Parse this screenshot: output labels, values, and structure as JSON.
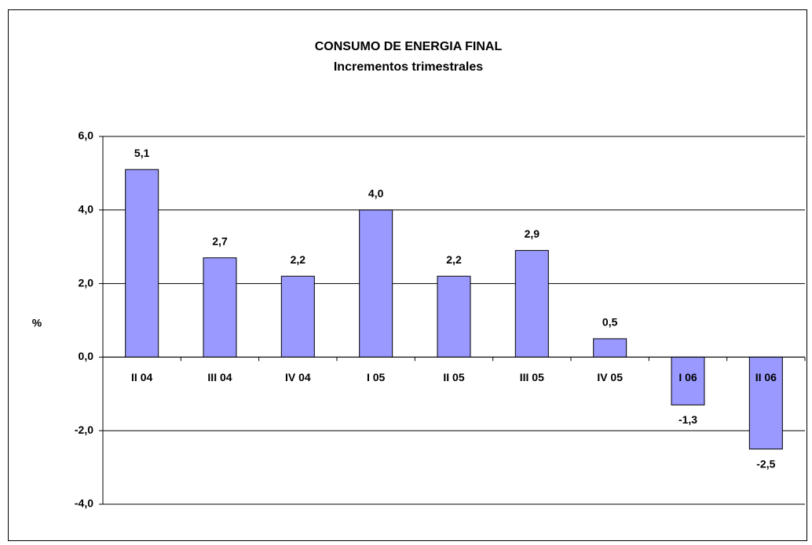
{
  "chart_data": {
    "type": "bar",
    "title": "CONSUMO DE ENERGIA FINAL",
    "subtitle": "Incrementos trimestrales",
    "y_label": "%",
    "categories": [
      "II 04",
      "III 04",
      "IV 04",
      "I 05",
      "II 05",
      "III 05",
      "IV 05",
      "I 06",
      "II 06"
    ],
    "values": [
      5.1,
      2.7,
      2.2,
      4.0,
      2.2,
      2.9,
      0.5,
      -1.3,
      -2.5
    ],
    "value_labels": [
      "5,1",
      "2,7",
      "2,2",
      "4,0",
      "2,2",
      "2,9",
      "0,5",
      "-1,3",
      "-2,5"
    ],
    "color": "#9999ff",
    "ylim": [
      -4,
      6
    ],
    "yticks": [
      {
        "value": -4,
        "label": "-4,0"
      },
      {
        "value": -2,
        "label": "-2,0"
      },
      {
        "value": 0,
        "label": "0,0"
      },
      {
        "value": 2,
        "label": "2,0"
      },
      {
        "value": 4,
        "label": "4,0"
      },
      {
        "value": 6,
        "label": "6,0"
      }
    ],
    "grid": true
  }
}
